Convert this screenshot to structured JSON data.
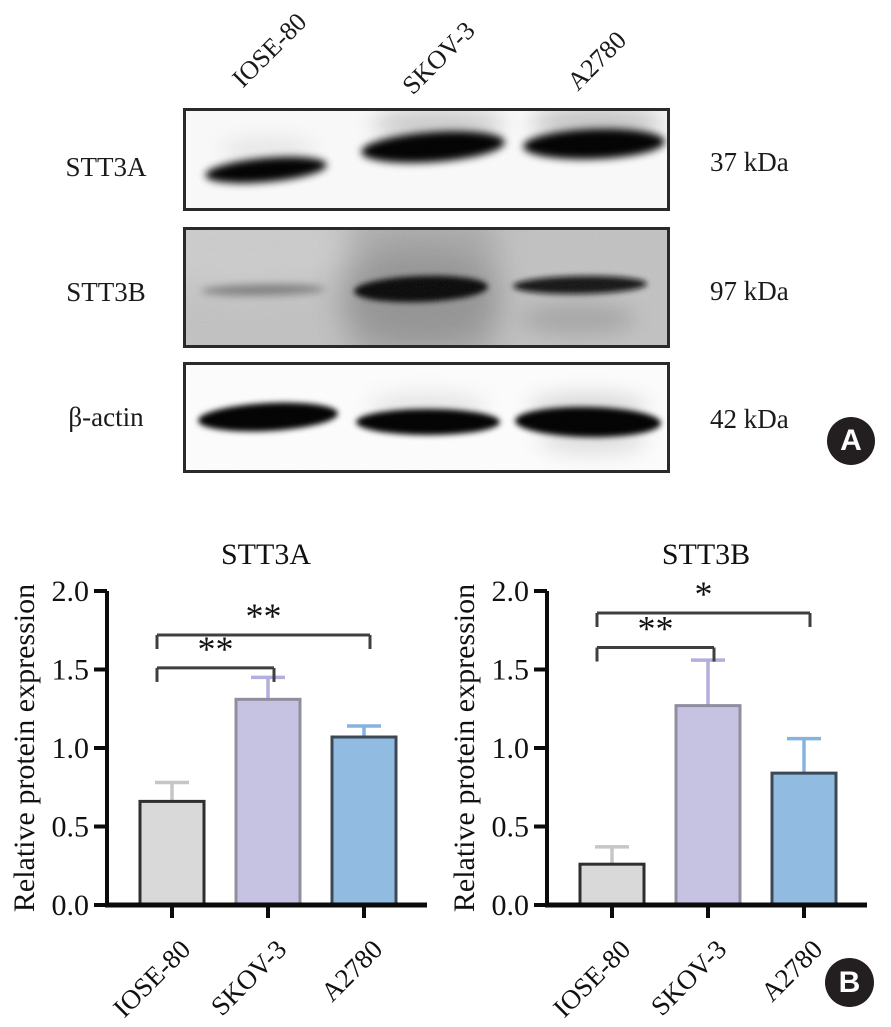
{
  "panel_a": {
    "badge_label": "A",
    "lane_labels": [
      "IOSE-80",
      "SKOV-3",
      "A2780"
    ],
    "rows": [
      {
        "protein": "STT3A",
        "molecular_weight": "37 kDa"
      },
      {
        "protein": "STT3B",
        "molecular_weight": "97 kDa"
      },
      {
        "protein": "β-actin",
        "molecular_weight": "42 kDa"
      }
    ]
  },
  "panel_b": {
    "badge_label": "B"
  },
  "chart_data": [
    {
      "type": "bar",
      "title": "STT3A",
      "xlabel": "",
      "ylabel": "Relative protein expression",
      "categories": [
        "IOSE-80",
        "SKOV-3",
        "A2780"
      ],
      "values": [
        0.66,
        1.31,
        1.07
      ],
      "errors": [
        0.12,
        0.14,
        0.07
      ],
      "ylim": [
        0,
        2.0
      ],
      "ytick_values": [
        0,
        0.5,
        1.0,
        1.5,
        2.0
      ],
      "ytick_labels": [
        "0.0",
        "0.5",
        "1.0",
        "1.5",
        "2.0"
      ],
      "grid": false,
      "legend": "none",
      "bar_colors": [
        "#d9d9d9",
        "#c6c2e2",
        "#92bbe1"
      ],
      "bar_border_colors": [
        "#2e2e2e",
        "#908d9e",
        "#3c4854"
      ],
      "error_bar_colors": [
        "#c6c6c6",
        "#b2aedd",
        "#85b2df"
      ],
      "significance": [
        {
          "from": 0,
          "to": 1,
          "y": 1.51,
          "label": "**"
        },
        {
          "from": 0,
          "to": 2,
          "y": 1.72,
          "label": "**"
        }
      ]
    },
    {
      "type": "bar",
      "title": "STT3B",
      "xlabel": "",
      "ylabel": "Relative protein expression",
      "categories": [
        "IOSE-80",
        "SKOV-3",
        "A2780"
      ],
      "values": [
        0.26,
        1.27,
        0.84
      ],
      "errors": [
        0.11,
        0.29,
        0.22
      ],
      "ylim": [
        0,
        2.0
      ],
      "ytick_values": [
        0,
        0.5,
        1.0,
        1.5,
        2.0
      ],
      "ytick_labels": [
        "0.0",
        "0.5",
        "1.0",
        "1.5",
        "2.0"
      ],
      "grid": false,
      "legend": "none",
      "bar_colors": [
        "#d9d9d9",
        "#c6c2e2",
        "#92bbe1"
      ],
      "bar_border_colors": [
        "#2e2e2e",
        "#908d9e",
        "#3c4854"
      ],
      "error_bar_colors": [
        "#c6c6c6",
        "#b2aedd",
        "#85b2df"
      ],
      "significance": [
        {
          "from": 0,
          "to": 1,
          "y": 1.64,
          "label": "**"
        },
        {
          "from": 0,
          "to": 2,
          "y": 1.86,
          "label": "*"
        }
      ]
    }
  ]
}
